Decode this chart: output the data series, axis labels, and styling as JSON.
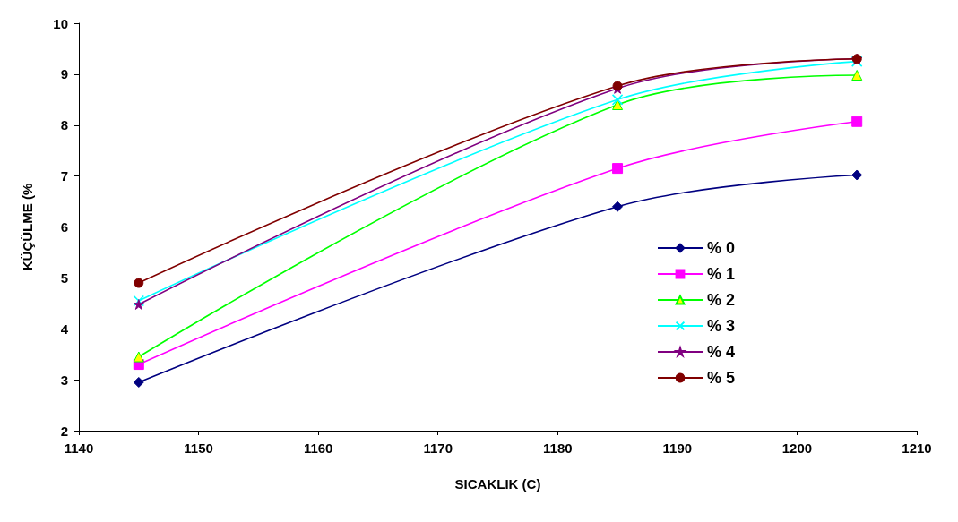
{
  "chart_data": {
    "type": "line",
    "xlabel": "SICAKLIK (C)",
    "ylabel": "KÜÇÜLME (%",
    "x": [
      1145,
      1185,
      1205
    ],
    "series": [
      {
        "name": "% 0",
        "color": "#000080",
        "marker": "diamond",
        "values": [
          2.95,
          6.4,
          7.02
        ]
      },
      {
        "name": "% 1",
        "color": "#ff00ff",
        "marker": "square",
        "values": [
          3.3,
          7.15,
          8.07
        ]
      },
      {
        "name": "% 2",
        "color": "#00ff00",
        "marker": "triangle",
        "values": [
          3.45,
          8.4,
          8.98
        ]
      },
      {
        "name": "% 3",
        "color": "#00ffff",
        "marker": "cross",
        "values": [
          4.55,
          8.5,
          9.25
        ]
      },
      {
        "name": "% 4",
        "color": "#800080",
        "marker": "star",
        "values": [
          4.48,
          8.72,
          9.3
        ]
      },
      {
        "name": "% 5",
        "color": "#800000",
        "marker": "circle",
        "values": [
          4.9,
          8.77,
          9.3
        ]
      }
    ],
    "xlim": [
      1140,
      1210
    ],
    "xticks": [
      1140,
      1150,
      1160,
      1170,
      1180,
      1190,
      1200,
      1210
    ],
    "ylim": [
      2,
      10
    ],
    "yticks": [
      2,
      3,
      4,
      5,
      6,
      7,
      8,
      9,
      10
    ],
    "grid": false,
    "legend": "right",
    "line_style": "solid"
  }
}
